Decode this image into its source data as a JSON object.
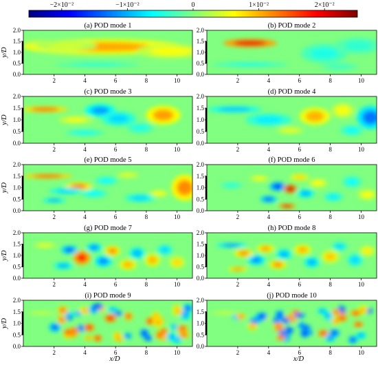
{
  "colorbar": {
    "colormap": "jet",
    "range": [
      -0.025,
      0.025
    ],
    "ticks": [
      {
        "value": -0.02,
        "label": "−2×10⁻²"
      },
      {
        "value": -0.01,
        "label": "−1×10⁻²"
      },
      {
        "value": 0,
        "label": "0"
      },
      {
        "value": 0.01,
        "label": "1×10⁻²"
      },
      {
        "value": 0.02,
        "label": "2×10⁻²"
      }
    ]
  },
  "chart_data": {
    "type": "heatmap",
    "xlabel": "x/D",
    "ylabel": "y/D",
    "xlim": [
      0,
      11
    ],
    "ylim": [
      0,
      2
    ],
    "xticks": [
      "2",
      "4",
      "6",
      "8",
      "10"
    ],
    "yticks": [
      "0.0",
      "0.5",
      "1.0",
      "1.5",
      "2.0"
    ],
    "panels": [
      {
        "title": "(a) POD mode 1"
      },
      {
        "title": "(b) POD mode 2"
      },
      {
        "title": "(c) POD mode 3"
      },
      {
        "title": "(d) POD mode 4"
      },
      {
        "title": "(e) POD mode 5"
      },
      {
        "title": "(f) POD mode 6"
      },
      {
        "title": "(g) POD mode 7"
      },
      {
        "title": "(h) POD mode 8"
      },
      {
        "title": "(i) POD mode 9"
      },
      {
        "title": "(j) POD mode 10"
      }
    ]
  }
}
